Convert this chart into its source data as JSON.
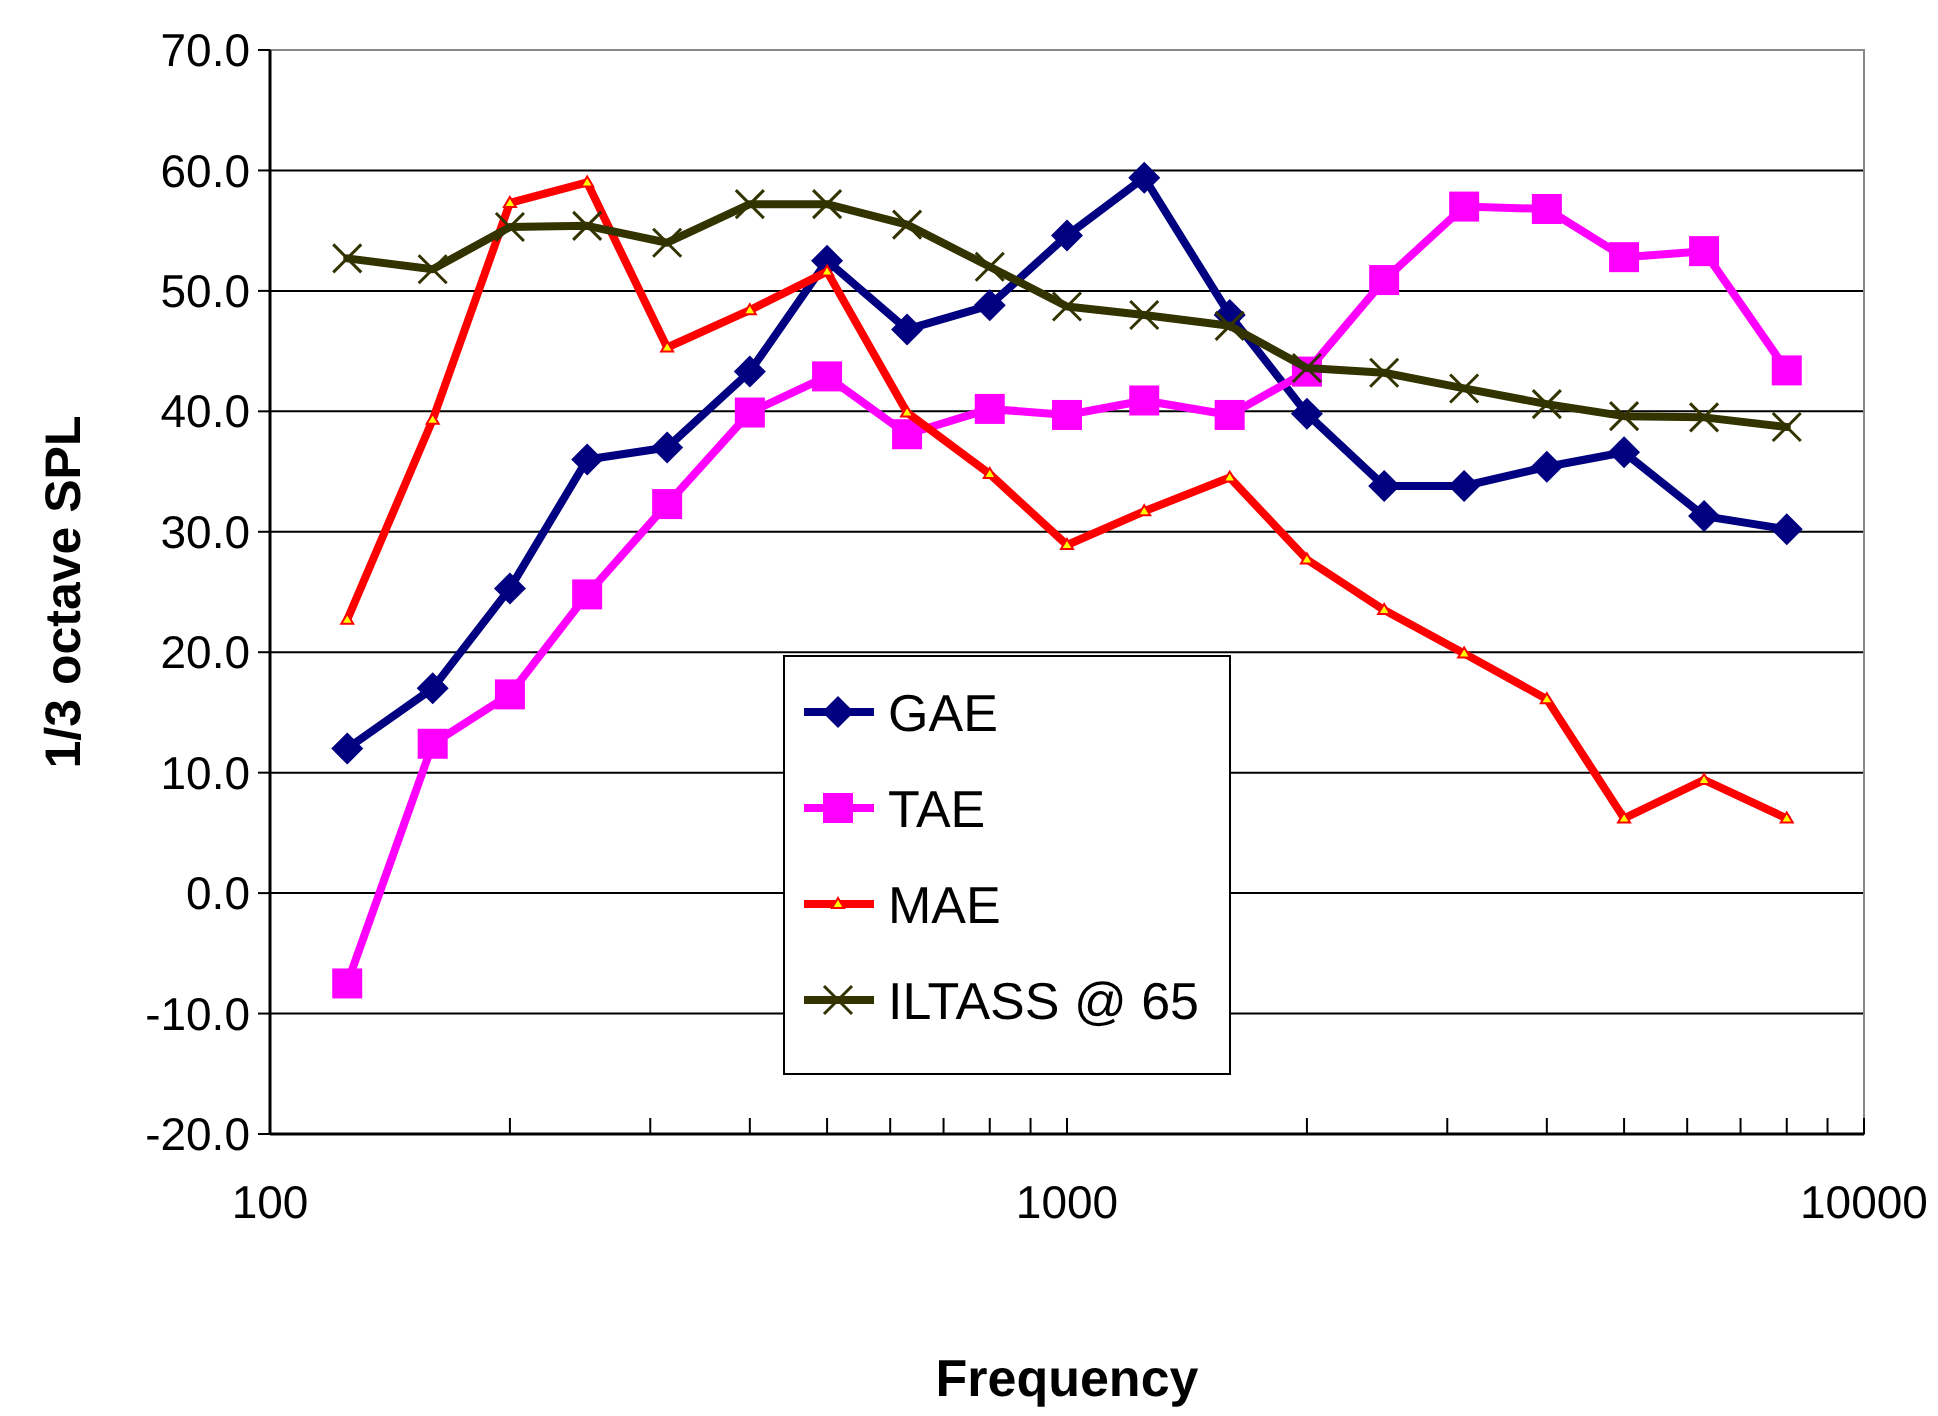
{
  "chart_data": {
    "type": "line",
    "xlabel": "Frequency",
    "ylabel": "1/3 octave SPL",
    "log": "x",
    "x": [
      125,
      160,
      200,
      250,
      315,
      400,
      500,
      630,
      800,
      1000,
      1250,
      1600,
      2000,
      2500,
      3150,
      4000,
      5000,
      6300,
      8000
    ],
    "xlim": [
      100,
      10000
    ],
    "xticks": [
      100,
      {
        "value": 200,
        "label": null
      },
      {
        "value": 300,
        "label": null
      },
      {
        "value": 400,
        "label": null
      },
      {
        "value": 500,
        "label": null
      },
      {
        "value": 600,
        "label": null
      },
      {
        "value": 700,
        "label": null
      },
      {
        "value": 800,
        "label": null
      },
      {
        "value": 900,
        "label": null
      },
      1000,
      {
        "value": 2000,
        "label": null
      },
      {
        "value": 3000,
        "label": null
      },
      {
        "value": 4000,
        "label": null
      },
      {
        "value": 5000,
        "label": null
      },
      {
        "value": 6000,
        "label": null
      },
      {
        "value": 7000,
        "label": null
      },
      {
        "value": 8000,
        "label": null
      },
      {
        "value": 9000,
        "label": null
      },
      10000
    ],
    "ylim": [
      -20,
      70
    ],
    "yticks": [
      {
        "value": -20,
        "label": "-20.0"
      },
      {
        "value": -10,
        "label": "-10.0"
      },
      {
        "value": 0,
        "label": "0.0"
      },
      {
        "value": 10,
        "label": "10.0"
      },
      {
        "value": 20,
        "label": "20.0"
      },
      {
        "value": 30,
        "label": "30.0"
      },
      {
        "value": 40,
        "label": "40.0"
      },
      {
        "value": 50,
        "label": "50.0"
      },
      {
        "value": 60,
        "label": "60.0"
      },
      {
        "value": 70,
        "label": "70.0"
      }
    ],
    "grid": "y",
    "legend": "bottom",
    "line_style": "solid",
    "series": [
      {
        "name": "GAE",
        "color": "#000080",
        "marker": "diamond",
        "values": [
          12.0,
          17.0,
          25.3,
          36.0,
          37.0,
          43.3,
          52.5,
          46.8,
          48.8,
          54.6,
          59.4,
          48.0,
          39.8,
          33.8,
          33.8,
          35.4,
          36.6,
          31.3,
          30.2
        ]
      },
      {
        "name": "TAE",
        "color": "#ff00ff",
        "marker": "square",
        "values": [
          -7.5,
          12.4,
          16.5,
          24.8,
          32.3,
          39.9,
          42.9,
          38.1,
          40.2,
          39.7,
          40.9,
          39.7,
          43.3,
          50.9,
          57.0,
          56.8,
          52.8,
          53.3,
          43.4
        ]
      },
      {
        "name": "MAE",
        "color": "#ff0000",
        "marker": "triangle",
        "values": [
          22.7,
          39.3,
          57.3,
          59.0,
          45.3,
          48.4,
          51.6,
          39.9,
          34.8,
          28.9,
          31.7,
          34.5,
          27.7,
          23.5,
          19.9,
          16.1,
          6.2,
          9.4,
          6.2
        ]
      },
      {
        "name": "ILTASS @ 65",
        "color": "#333300",
        "marker": "cross",
        "values": [
          52.7,
          51.8,
          55.3,
          55.4,
          54.0,
          57.2,
          57.2,
          55.5,
          52.0,
          48.7,
          48.0,
          47.1,
          43.6,
          43.2,
          41.9,
          40.6,
          39.6,
          39.5,
          38.7
        ]
      }
    ]
  }
}
